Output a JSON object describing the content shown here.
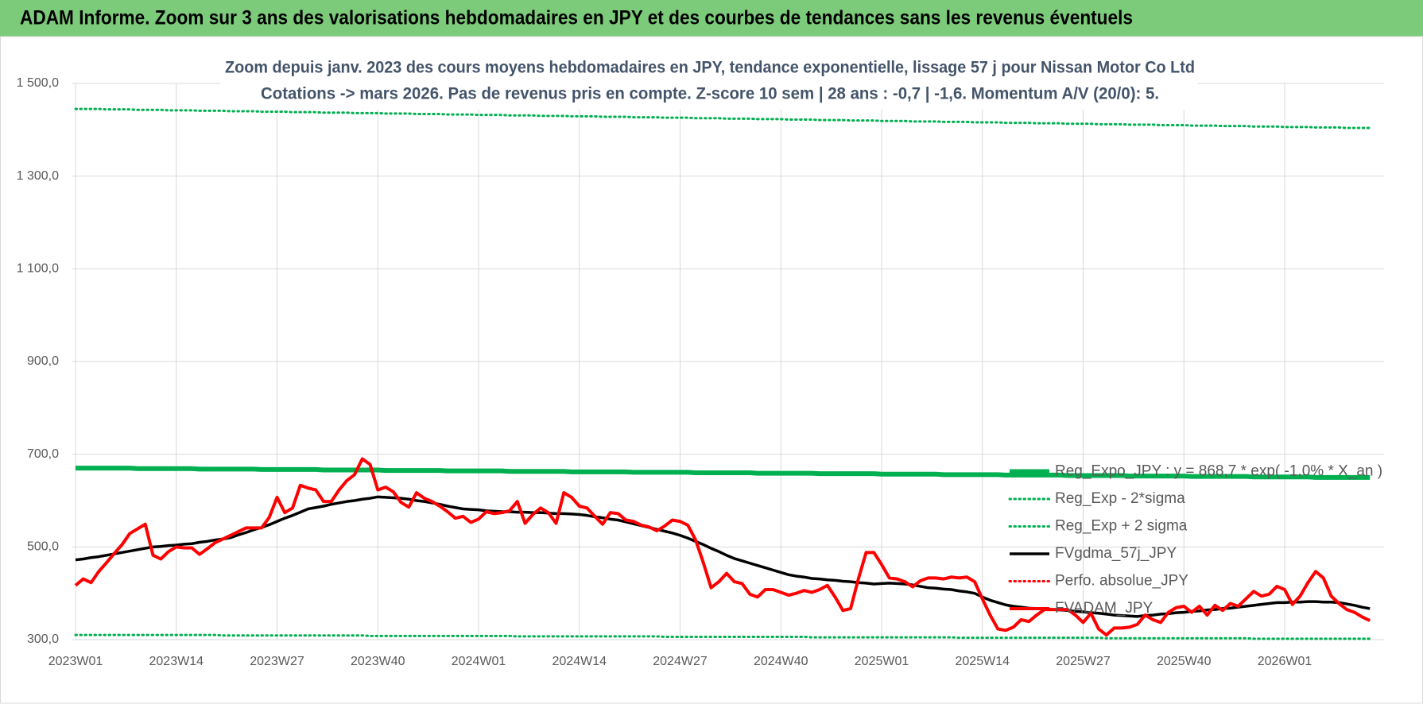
{
  "header": {
    "title": "ADAM Informe. Zoom sur 3 ans des valorisations hebdomadaires en JPY et des courbes de tendances sans les revenus éventuels"
  },
  "chart_data": {
    "type": "line",
    "title": [
      "Zoom depuis janv. 2023 des cours moyens hebdomadaires en JPY, tendance exponentielle, lissage 57 j pour Nissan Motor Co Ltd",
      "Cotations -> mars 2026. Pas de revenus pris en compte. Z-score 10 sem | 28 ans : -0,7 | -1,6. Momentum A/V (20/0): 5."
    ],
    "ylim": [
      300,
      1500
    ],
    "yticks": [
      {
        "value": 300,
        "label": "300,0"
      },
      {
        "value": 500,
        "label": "500,0"
      },
      {
        "value": 700,
        "label": "700,0"
      },
      {
        "value": 900,
        "label": "900,0"
      },
      {
        "value": 1100,
        "label": "1 100,0"
      },
      {
        "value": 1300,
        "label": "1 300,0"
      },
      {
        "value": 1500,
        "label": "1 500,0"
      }
    ],
    "grid": true,
    "legend": "lower right",
    "categories": [
      "2023W01",
      null,
      null,
      null,
      null,
      null,
      null,
      null,
      null,
      null,
      null,
      null,
      null,
      "2023W14",
      null,
      null,
      null,
      null,
      null,
      null,
      null,
      null,
      null,
      null,
      null,
      null,
      "2023W27",
      null,
      null,
      null,
      null,
      null,
      null,
      null,
      null,
      null,
      null,
      null,
      null,
      "2023W40",
      null,
      null,
      null,
      null,
      null,
      null,
      null,
      null,
      null,
      null,
      null,
      null,
      "2024W01",
      null,
      null,
      null,
      null,
      null,
      null,
      null,
      null,
      null,
      null,
      null,
      null,
      "2024W14",
      null,
      null,
      null,
      null,
      null,
      null,
      null,
      null,
      null,
      null,
      null,
      null,
      "2024W27",
      null,
      null,
      null,
      null,
      null,
      null,
      null,
      null,
      null,
      null,
      null,
      null,
      "2024W40",
      null,
      null,
      null,
      null,
      null,
      null,
      null,
      null,
      null,
      null,
      null,
      null,
      "2025W01",
      null,
      null,
      null,
      null,
      null,
      null,
      null,
      null,
      null,
      null,
      null,
      null,
      "2025W14",
      null,
      null,
      null,
      null,
      null,
      null,
      null,
      null,
      null,
      null,
      null,
      null,
      "2025W27",
      null,
      null,
      null,
      null,
      null,
      null,
      null,
      null,
      null,
      null,
      null,
      null,
      "2025W40",
      null,
      null,
      null,
      null,
      null,
      null,
      null,
      null,
      null,
      null,
      null,
      null,
      "2026W01",
      null,
      null,
      null,
      null,
      null,
      null,
      null,
      null,
      null,
      null,
      null
    ],
    "series": [
      {
        "name": "Reg_Expo_JPY : y = 868,7 * exp( -1,0% * X_an )",
        "color": "#00b050",
        "line": "thick",
        "values": [
          670,
          670,
          670,
          670,
          670,
          670,
          670,
          670,
          669,
          669,
          669,
          669,
          669,
          669,
          669,
          669,
          668,
          668,
          668,
          668,
          668,
          668,
          668,
          668,
          667,
          667,
          667,
          667,
          667,
          667,
          667,
          667,
          666,
          666,
          666,
          666,
          666,
          666,
          666,
          666,
          665,
          665,
          665,
          665,
          665,
          665,
          665,
          665,
          664,
          664,
          664,
          664,
          664,
          664,
          664,
          664,
          663,
          663,
          663,
          663,
          663,
          663,
          663,
          663,
          662,
          662,
          662,
          662,
          662,
          662,
          662,
          662,
          661,
          661,
          661,
          661,
          661,
          661,
          661,
          661,
          660,
          660,
          660,
          660,
          660,
          660,
          660,
          660,
          659,
          659,
          659,
          659,
          659,
          659,
          659,
          659,
          658,
          658,
          658,
          658,
          658,
          658,
          658,
          658,
          657,
          657,
          657,
          657,
          657,
          657,
          657,
          657,
          656,
          656,
          656,
          656,
          656,
          656,
          656,
          656,
          655,
          655,
          655,
          655,
          655,
          655,
          655,
          655,
          654,
          654,
          654,
          654,
          654,
          654,
          654,
          654,
          653,
          653,
          653,
          653,
          653,
          653,
          653,
          653,
          652,
          652,
          652,
          652,
          652,
          652,
          652,
          652,
          651,
          651,
          651,
          651,
          651,
          651,
          651,
          651,
          650,
          650,
          650,
          650,
          650,
          650,
          650,
          650
        ]
      },
      {
        "name": "Reg_Exp - 2*sigma",
        "color": "#00b050",
        "line": "dotted",
        "values": [
          310,
          310,
          310,
          310,
          310,
          310,
          310,
          310,
          310,
          310,
          310,
          310,
          310,
          310,
          310,
          310,
          310,
          310,
          310,
          309,
          309,
          309,
          309,
          309,
          309,
          309,
          309,
          309,
          309,
          309,
          309,
          309,
          309,
          309,
          309,
          309,
          309,
          309,
          308,
          308,
          308,
          308,
          308,
          308,
          308,
          308,
          308,
          308,
          308,
          308,
          308,
          308,
          308,
          308,
          308,
          308,
          308,
          307,
          307,
          307,
          307,
          307,
          307,
          307,
          307,
          307,
          307,
          307,
          307,
          307,
          307,
          307,
          307,
          307,
          307,
          307,
          306,
          306,
          306,
          306,
          306,
          306,
          306,
          306,
          306,
          306,
          306,
          306,
          306,
          306,
          306,
          306,
          306,
          306,
          306,
          305,
          305,
          305,
          305,
          305,
          305,
          305,
          305,
          305,
          305,
          305,
          305,
          305,
          305,
          305,
          305,
          305,
          305,
          305,
          304,
          304,
          304,
          304,
          304,
          304,
          304,
          304,
          304,
          304,
          304,
          304,
          304,
          304,
          304,
          304,
          304,
          304,
          304,
          303,
          303,
          303,
          303,
          303,
          303,
          303,
          303,
          303,
          303,
          303,
          303,
          303,
          303,
          303,
          303,
          303,
          303,
          303,
          302,
          302,
          302,
          302,
          302,
          302,
          302,
          302,
          302,
          302,
          302,
          302,
          302,
          302,
          302,
          302
        ]
      },
      {
        "name": "Reg_Exp + 2 sigma",
        "color": "#00b050",
        "line": "dotted",
        "values": [
          1445,
          1445,
          1445,
          1445,
          1444,
          1444,
          1444,
          1444,
          1443,
          1443,
          1443,
          1443,
          1442,
          1442,
          1442,
          1442,
          1441,
          1441,
          1441,
          1441,
          1440,
          1440,
          1440,
          1440,
          1439,
          1439,
          1439,
          1439,
          1438,
          1438,
          1438,
          1438,
          1437,
          1437,
          1437,
          1437,
          1436,
          1436,
          1436,
          1436,
          1435,
          1435,
          1435,
          1435,
          1434,
          1434,
          1434,
          1434,
          1433,
          1433,
          1433,
          1433,
          1432,
          1432,
          1432,
          1432,
          1431,
          1431,
          1431,
          1431,
          1430,
          1430,
          1430,
          1430,
          1429,
          1429,
          1429,
          1429,
          1428,
          1428,
          1428,
          1428,
          1427,
          1427,
          1427,
          1427,
          1426,
          1426,
          1426,
          1426,
          1425,
          1425,
          1425,
          1425,
          1424,
          1424,
          1424,
          1424,
          1423,
          1423,
          1423,
          1423,
          1422,
          1422,
          1422,
          1422,
          1421,
          1421,
          1421,
          1421,
          1420,
          1420,
          1420,
          1420,
          1419,
          1419,
          1419,
          1419,
          1418,
          1418,
          1418,
          1418,
          1417,
          1417,
          1417,
          1417,
          1416,
          1416,
          1416,
          1416,
          1415,
          1415,
          1415,
          1415,
          1414,
          1414,
          1414,
          1414,
          1413,
          1413,
          1413,
          1413,
          1412,
          1412,
          1412,
          1412,
          1411,
          1411,
          1411,
          1411,
          1410,
          1410,
          1410,
          1410,
          1409,
          1409,
          1409,
          1409,
          1408,
          1408,
          1408,
          1408,
          1407,
          1407,
          1407,
          1407,
          1406,
          1406,
          1406,
          1406,
          1405,
          1405,
          1405,
          1405,
          1404,
          1404,
          1404,
          1404
        ]
      },
      {
        "name": "FVgdma_57j_JPY",
        "color": "#000000",
        "line": "solid",
        "values": [
          472,
          474,
          477,
          479,
          482,
          485,
          488,
          491,
          494,
          497,
          500,
          501,
          503,
          504,
          506,
          507,
          510,
          512,
          515,
          517,
          520,
          526,
          531,
          537,
          542,
          548,
          555,
          562,
          568,
          575,
          582,
          585,
          588,
          592,
          595,
          598,
          600,
          603,
          605,
          608,
          607,
          606,
          605,
          603,
          600,
          598,
          595,
          592,
          588,
          585,
          582,
          581,
          580,
          578,
          577,
          576,
          576,
          575,
          575,
          574,
          574,
          573,
          572,
          572,
          571,
          570,
          568,
          565,
          563,
          560,
          558,
          554,
          550,
          546,
          542,
          538,
          534,
          530,
          525,
          519,
          512,
          505,
          497,
          490,
          482,
          475,
          470,
          465,
          460,
          455,
          450,
          445,
          440,
          437,
          435,
          432,
          431,
          429,
          428,
          426,
          425,
          423,
          422,
          420,
          421,
          422,
          421,
          420,
          418,
          415,
          412,
          411,
          409,
          408,
          405,
          403,
          400,
          392,
          385,
          380,
          375,
          372,
          370,
          368,
          367,
          366,
          365,
          364,
          363,
          361,
          360,
          358,
          357,
          355,
          353,
          352,
          351,
          350,
          352,
          353,
          355,
          356,
          358,
          359,
          361,
          362,
          364,
          365,
          367,
          368,
          370,
          372,
          374,
          376,
          378,
          380,
          380,
          381,
          381,
          382,
          382,
          381,
          381,
          380,
          377,
          374,
          370,
          367
        ]
      },
      {
        "name": "Perfo. absolue_JPY",
        "color": "#ff0000",
        "line": "dotted",
        "values": [
          null,
          null,
          null,
          null,
          null,
          null,
          null,
          null,
          null,
          null,
          null,
          null,
          null,
          null,
          null,
          null,
          null,
          null,
          null,
          null,
          null,
          null,
          null,
          null,
          null,
          null,
          null,
          null,
          null,
          null,
          null,
          null,
          null,
          null,
          null,
          null,
          null,
          null,
          null,
          null,
          null,
          null,
          null,
          null,
          null,
          null,
          null,
          null,
          null,
          null,
          null,
          null,
          null,
          null,
          null,
          null,
          null,
          null,
          null,
          null,
          null,
          null,
          null,
          null,
          null,
          null,
          null,
          null,
          null,
          null,
          null,
          null,
          null,
          null,
          null,
          null,
          null,
          null,
          null,
          null,
          null,
          null,
          null,
          null,
          null,
          null,
          null,
          null,
          null,
          null,
          null,
          null,
          null,
          null,
          null,
          null,
          null,
          null,
          null,
          null,
          null,
          null,
          null,
          null,
          null,
          null,
          null,
          null,
          null,
          null,
          null,
          null,
          null,
          null,
          null,
          null,
          null,
          null,
          null,
          null,
          null,
          null,
          null,
          null,
          null,
          null,
          null,
          null,
          null,
          null,
          null,
          null,
          null,
          null,
          null,
          null,
          null,
          null,
          null,
          null,
          null,
          null,
          null,
          null,
          null,
          null,
          null,
          null,
          null,
          null,
          null,
          null,
          null,
          null,
          null,
          null,
          null,
          null,
          null,
          null,
          null,
          null,
          null,
          null,
          null,
          null,
          null,
          null
        ]
      },
      {
        "name": "FVADAM_JPY",
        "color": "#ff0000",
        "line": "bold",
        "values": [
          417,
          431,
          423,
          447,
          466,
          486,
          505,
          529,
          539,
          549,
          482,
          474,
          490,
          500,
          498,
          498,
          484,
          496,
          509,
          517,
          525,
          533,
          541,
          541,
          541,
          564,
          607,
          574,
          584,
          633,
          627,
          623,
          598,
          598,
          623,
          643,
          656,
          690,
          678,
          623,
          629,
          619,
          596,
          586,
          617,
          605,
          598,
          588,
          576,
          562,
          566,
          553,
          560,
          576,
          572,
          574,
          578,
          598,
          551,
          570,
          584,
          574,
          551,
          617,
          607,
          588,
          584,
          566,
          549,
          574,
          572,
          558,
          555,
          547,
          543,
          535,
          545,
          558,
          555,
          547,
          515,
          466,
          412,
          425,
          443,
          425,
          421,
          398,
          392,
          408,
          408,
          402,
          396,
          400,
          406,
          402,
          408,
          417,
          392,
          363,
          367,
          431,
          488,
          488,
          462,
          433,
          431,
          425,
          414,
          427,
          433,
          433,
          431,
          435,
          433,
          435,
          425,
          388,
          353,
          323,
          320,
          327,
          343,
          339,
          353,
          365,
          365,
          365,
          365,
          353,
          337,
          357,
          323,
          310,
          325,
          325,
          327,
          333,
          353,
          343,
          337,
          359,
          369,
          372,
          359,
          372,
          353,
          374,
          363,
          378,
          372,
          388,
          404,
          394,
          398,
          415,
          408,
          376,
          394,
          423,
          447,
          433,
          394,
          378,
          365,
          359,
          349,
          341
        ]
      }
    ]
  }
}
